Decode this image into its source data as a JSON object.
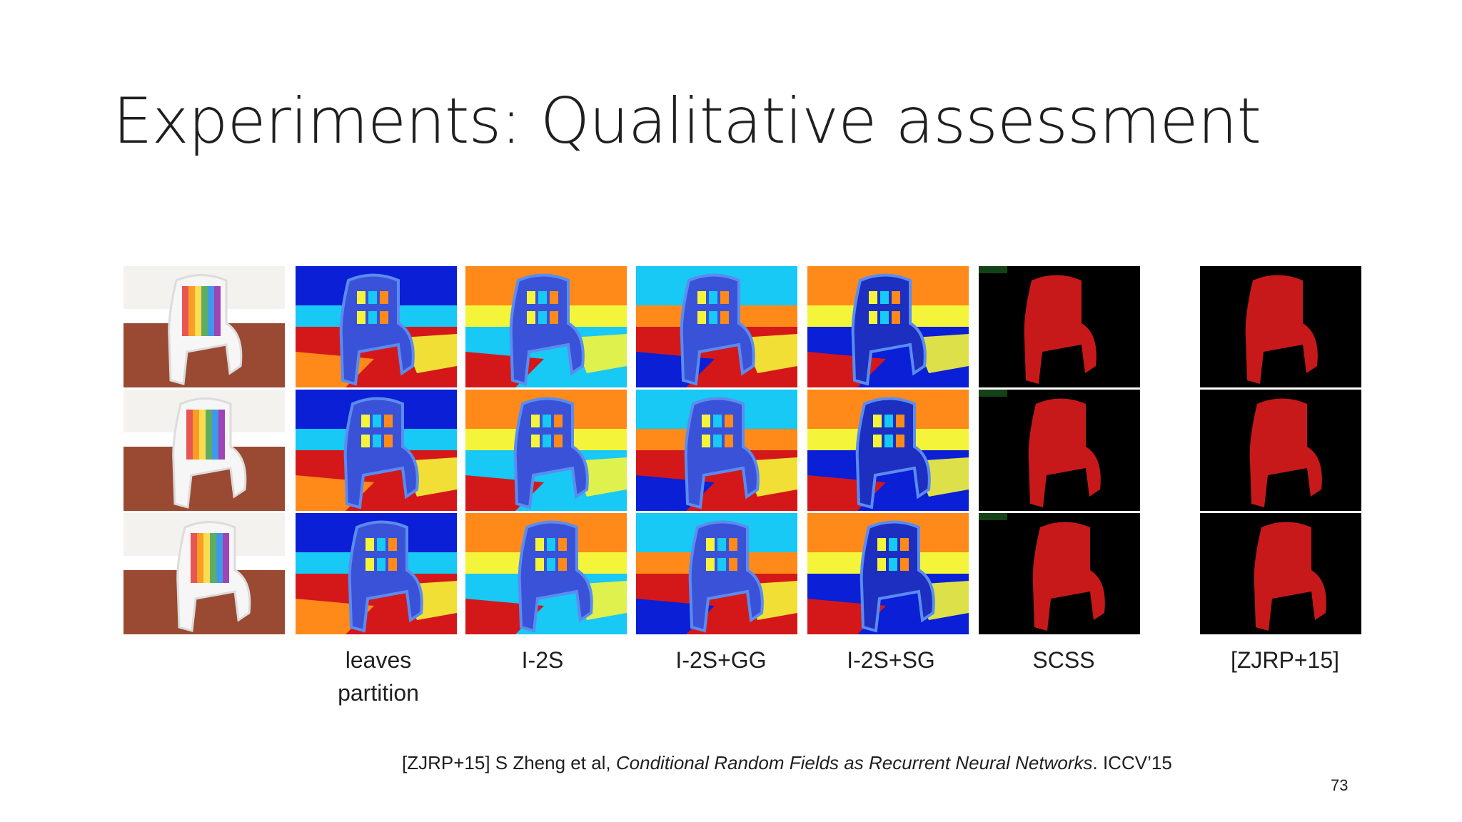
{
  "slide": {
    "title": "Experiments: Qualitative assessment",
    "page_number": "73"
  },
  "labels": {
    "leaves_line1": "leaves",
    "leaves_line2": "partition",
    "i2s": "I-2S",
    "i2s_gg": "I-2S+GG",
    "i2s_sg": "I-2S+SG",
    "scss": "SCSS",
    "zjrp": "[ZJRP+15]"
  },
  "citation": {
    "prefix": "[ZJRP+15] S Zheng et al, ",
    "title": "Conditional Random Fields as Recurrent Neural Networks",
    "suffix": ". ICCV’15"
  },
  "colors": {
    "jet_blue": "#0a1fd6",
    "jet_cyan": "#18c8f5",
    "jet_yellow": "#f4f53a",
    "jet_orange": "#ff8a1a",
    "jet_red": "#d4181a",
    "mask_red": "#c8191a",
    "mask_bg": "#000000"
  }
}
